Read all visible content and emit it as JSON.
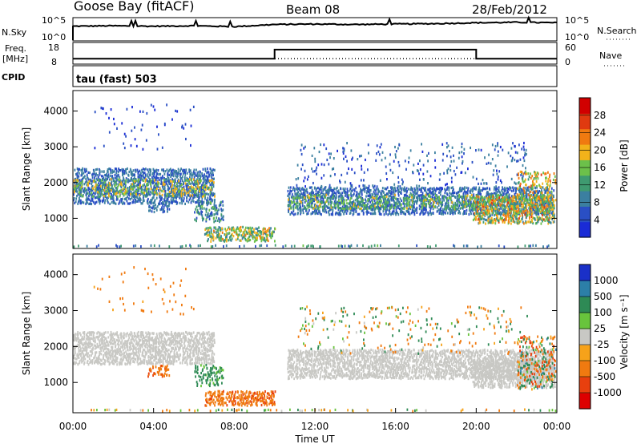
{
  "header": {
    "station": "Goose Bay (fitACF)",
    "beam": "Beam 08",
    "date": "28/Feb/2012"
  },
  "summary_panel": {
    "nsky_label": "N.Sky",
    "nsearch_label": "N.Search",
    "nsky_ticks": [
      "10^5",
      "10^0"
    ],
    "nsearch_ticks": [
      "10^5",
      "10^0"
    ],
    "freq_label_top": "Freq.",
    "freq_label_unit": "[MHz]",
    "freq_ticks": [
      "18",
      "8"
    ],
    "nave_label": "Nave",
    "nave_ticks": [
      "60",
      "0"
    ],
    "cpid_label": "CPID",
    "cpid_text": "tau (fast) 503"
  },
  "colors": {
    "power": [
      "#1a2bd6",
      "#2a4fc4",
      "#3b7fa0",
      "#3f9a70",
      "#6cc04a",
      "#f2b21a",
      "#f07a10",
      "#e03a10",
      "#d10000"
    ],
    "velocity": [
      "#1a30c8",
      "#2c7fa8",
      "#2e8a55",
      "#68c43c",
      "#c8c8c4",
      "#f6a21a",
      "#f07a10",
      "#e8400e",
      "#dd0000"
    ],
    "gray": "#c8c8c4"
  },
  "chart_data": [
    {
      "type": "line",
      "name": "summary-nsky-nsearch",
      "x_unit": "hour UT",
      "xlim": [
        0,
        24
      ],
      "series": [
        {
          "name": "N.Sky",
          "style": "solid",
          "x": [
            0,
            2,
            4,
            6,
            8,
            10,
            12,
            14,
            16,
            18,
            20,
            22,
            24
          ],
          "y_log10": [
            3.2,
            3.3,
            3.2,
            3.3,
            3.1,
            3.6,
            3.7,
            3.6,
            3.7,
            3.8,
            4.0,
            4.1,
            4.0
          ]
        }
      ]
    },
    {
      "type": "line",
      "name": "summary-freq-nave",
      "xlim": [
        0,
        24
      ],
      "series": [
        {
          "name": "Freq.",
          "style": "solid",
          "x": [
            0,
            10,
            10,
            20,
            20,
            24
          ],
          "y": [
            10.2,
            10.2,
            15.3,
            15.3,
            10.2,
            10.2
          ]
        },
        {
          "name": "Nave",
          "style": "dotted",
          "x": [
            0,
            24
          ],
          "y": [
            13,
            13
          ]
        }
      ]
    },
    {
      "type": "heatmap",
      "name": "power-rti",
      "xlabel": "",
      "ylabel": "Slant Range [km]",
      "xlim": [
        0,
        24
      ],
      "ylim": [
        180,
        4550
      ],
      "yticks": [
        1000,
        2000,
        3000,
        4000
      ],
      "colorbar": {
        "label": "Power [dB]",
        "ticks": [
          "28",
          "24",
          "20",
          "16",
          "12",
          "8",
          "4"
        ],
        "range": [
          0,
          30
        ]
      },
      "regions": [
        {
          "t0": 0.0,
          "t1": 7.0,
          "r0": 1400,
          "r1": 2400,
          "density": 0.55,
          "value_range": [
            4,
            10
          ],
          "color_mode": "power"
        },
        {
          "t0": 0.0,
          "t1": 7.0,
          "r0": 1600,
          "r1": 2100,
          "density": 0.25,
          "value_range": [
            12,
            20
          ],
          "color_mode": "power"
        },
        {
          "t0": 1.0,
          "t1": 6.0,
          "r0": 2900,
          "r1": 4200,
          "density": 0.02,
          "value_range": [
            2,
            6
          ],
          "color_mode": "power"
        },
        {
          "t0": 3.7,
          "t1": 4.8,
          "r0": 1150,
          "r1": 1450,
          "density": 0.45,
          "value_range": [
            4,
            10
          ],
          "color_mode": "power"
        },
        {
          "t0": 6.0,
          "t1": 7.4,
          "r0": 900,
          "r1": 1500,
          "density": 0.35,
          "value_range": [
            4,
            14
          ],
          "color_mode": "power"
        },
        {
          "t0": 6.5,
          "t1": 10.0,
          "r0": 350,
          "r1": 750,
          "density": 0.55,
          "value_range": [
            8,
            22
          ],
          "color_mode": "power"
        },
        {
          "t0": 0.0,
          "t1": 24.0,
          "r0": 200,
          "r1": 260,
          "density": 0.25,
          "value_range": [
            4,
            14
          ],
          "color_mode": "power"
        },
        {
          "t0": 10.6,
          "t1": 23.8,
          "r0": 1100,
          "r1": 1850,
          "density": 0.5,
          "value_range": [
            4,
            10
          ],
          "color_mode": "power"
        },
        {
          "t0": 10.6,
          "t1": 23.8,
          "r0": 1250,
          "r1": 1650,
          "density": 0.25,
          "value_range": [
            10,
            18
          ],
          "color_mode": "power"
        },
        {
          "t0": 11.0,
          "t1": 22.5,
          "r0": 1800,
          "r1": 3100,
          "density": 0.06,
          "value_range": [
            2,
            10
          ],
          "color_mode": "power"
        },
        {
          "t0": 19.8,
          "t1": 23.9,
          "r0": 850,
          "r1": 1600,
          "density": 0.55,
          "value_range": [
            8,
            24
          ],
          "color_mode": "power"
        },
        {
          "t0": 22.0,
          "t1": 23.9,
          "r0": 1500,
          "r1": 2300,
          "density": 0.25,
          "value_range": [
            12,
            24
          ],
          "color_mode": "power"
        }
      ]
    },
    {
      "type": "heatmap",
      "name": "velocity-rti",
      "xlabel": "Time UT",
      "ylabel": "Slant Range [km]",
      "xlim": [
        0,
        24
      ],
      "ylim": [
        180,
        4550
      ],
      "yticks": [
        1000,
        2000,
        3000,
        4000
      ],
      "xticks": [
        "00:00",
        "04:00",
        "08:00",
        "12:00",
        "16:00",
        "20:00",
        "00:00"
      ],
      "colorbar": {
        "label": "Velocity [m s⁻¹]",
        "ticks": [
          "1000",
          "500",
          "100",
          "25",
          "-25",
          "-100",
          "-500",
          "-1000"
        ],
        "range": [
          -1200,
          1200
        ]
      },
      "regions": [
        {
          "t0": 0.0,
          "t1": 7.0,
          "r0": 1500,
          "r1": 2400,
          "density": 0.6,
          "value_range": [
            -20,
            20
          ],
          "color_mode": "velocity"
        },
        {
          "t0": 1.0,
          "t1": 6.0,
          "r0": 2900,
          "r1": 4200,
          "density": 0.02,
          "value_range": [
            -300,
            -80
          ],
          "color_mode": "velocity"
        },
        {
          "t0": 3.7,
          "t1": 4.8,
          "r0": 1150,
          "r1": 1450,
          "density": 0.45,
          "value_range": [
            -600,
            -200
          ],
          "color_mode": "velocity"
        },
        {
          "t0": 6.0,
          "t1": 7.4,
          "r0": 900,
          "r1": 1500,
          "density": 0.35,
          "value_range": [
            50,
            300
          ],
          "color_mode": "velocity"
        },
        {
          "t0": 6.5,
          "t1": 10.0,
          "r0": 350,
          "r1": 750,
          "density": 0.55,
          "value_range": [
            -600,
            -120
          ],
          "color_mode": "velocity"
        },
        {
          "t0": 0.0,
          "t1": 24.0,
          "r0": 200,
          "r1": 260,
          "density": 0.2,
          "value_range": [
            -200,
            200
          ],
          "color_mode": "velocity"
        },
        {
          "t0": 10.6,
          "t1": 23.8,
          "r0": 1100,
          "r1": 1900,
          "density": 0.6,
          "value_range": [
            -20,
            20
          ],
          "color_mode": "velocity"
        },
        {
          "t0": 11.0,
          "t1": 22.5,
          "r0": 1800,
          "r1": 3100,
          "density": 0.05,
          "value_range": [
            -400,
            400
          ],
          "color_mode": "velocity"
        },
        {
          "t0": 19.8,
          "t1": 23.9,
          "r0": 850,
          "r1": 1600,
          "density": 0.55,
          "value_range": [
            -20,
            20
          ],
          "color_mode": "velocity"
        },
        {
          "t0": 22.0,
          "t1": 23.9,
          "r0": 800,
          "r1": 2300,
          "density": 0.25,
          "value_range": [
            -800,
            600
          ],
          "color_mode": "velocity"
        }
      ]
    }
  ]
}
